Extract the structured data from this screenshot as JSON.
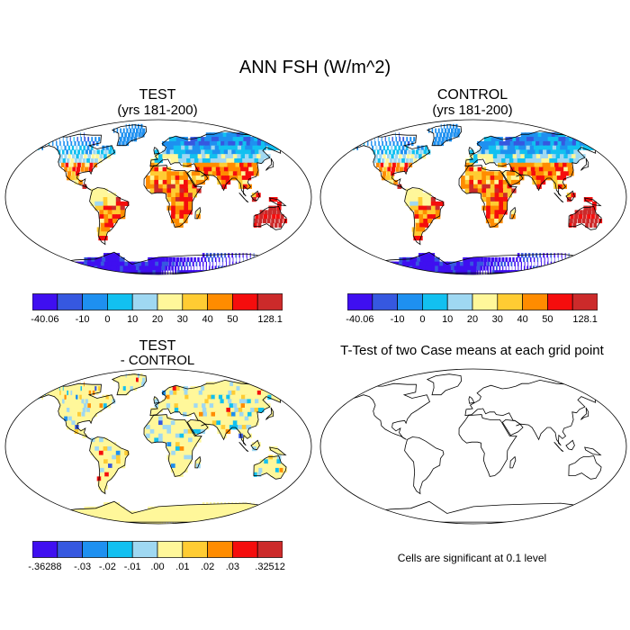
{
  "title": "ANN FSH (W/m^2)",
  "panels": {
    "test": {
      "title": "TEST",
      "subtitle": "(yrs 181-200)"
    },
    "control": {
      "title": "CONTROL",
      "subtitle": "(yrs 181-200)"
    },
    "diff": {
      "title": "TEST",
      "subtitle": "- CONTROL"
    },
    "ttest": {
      "title": "T-Test of two Case means at each grid point",
      "note": "Cells are significant at 0.1 level"
    }
  },
  "colorbars": {
    "main": {
      "colors": [
        "#3f0ff0",
        "#3658e0",
        "#1e90f0",
        "#12c0f0",
        "#9fd8f2",
        "#fff79a",
        "#ffcc33",
        "#ff8c00",
        "#f50d0d",
        "#cc2a2a"
      ],
      "labels": [
        "-40.06",
        "-10",
        "0",
        "10",
        "20",
        "30",
        "40",
        "50",
        "128.1"
      ]
    },
    "diff": {
      "colors": [
        "#3f0ff0",
        "#3658e0",
        "#1e90f0",
        "#12c0f0",
        "#9fd8f2",
        "#fff79a",
        "#ffcc33",
        "#ff8c00",
        "#f50d0d",
        "#cc2a2a"
      ],
      "labels": [
        "-.36288",
        "-.03",
        "-.02",
        "-.01",
        ".00",
        ".01",
        ".02",
        ".03",
        ".32512"
      ]
    }
  },
  "map_fields": {
    "abs": {
      "northern_high_latitudes": "#1e90f0",
      "mid_latitudes": "#12c0f0",
      "subtropics": "#ffcc33",
      "tropics_dry": "#f50d0d",
      "australia": "#cc2a2a",
      "antarctica": "#3f0ff0"
    },
    "diff": {
      "background": "#fff79a"
    }
  }
}
